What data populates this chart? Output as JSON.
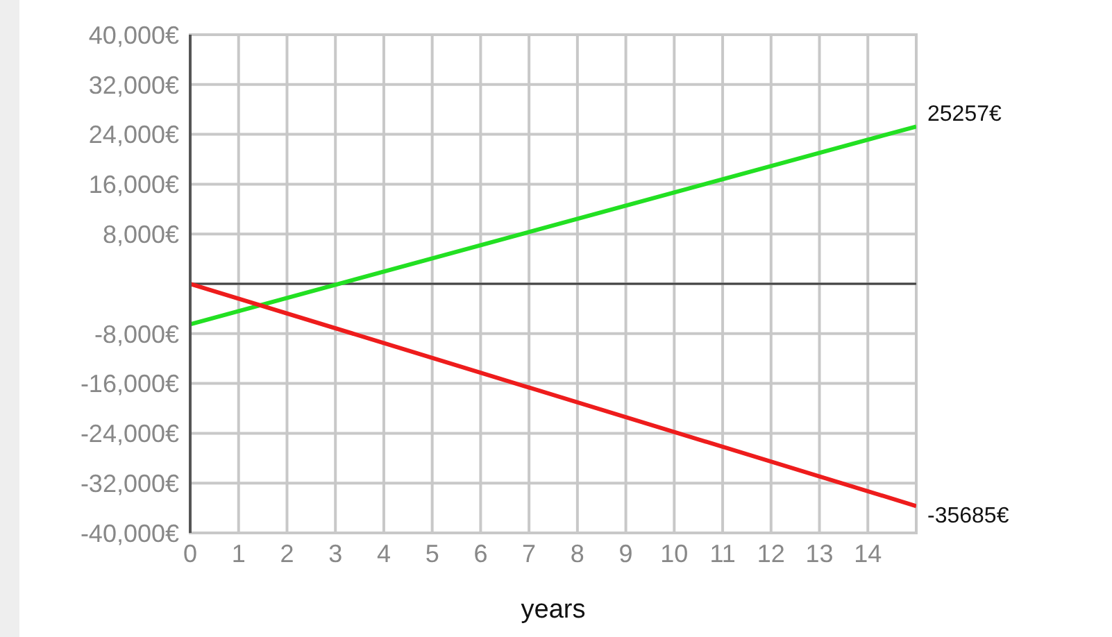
{
  "chart_data": {
    "type": "line",
    "xlabel": "years",
    "x": [
      0,
      15
    ],
    "series": [
      {
        "color": "#22e022",
        "values": [
          -6500,
          25257
        ],
        "value_labels": [
          null,
          "25257€"
        ]
      },
      {
        "color": "#ee1c1c",
        "values": [
          0,
          -35685
        ],
        "value_labels": [
          null,
          "-35685€"
        ]
      }
    ],
    "xlim": [
      0,
      15
    ],
    "xticks": [
      0,
      1,
      2,
      3,
      4,
      5,
      6,
      7,
      8,
      9,
      10,
      11,
      12,
      13,
      14
    ],
    "ylim": [
      -40000,
      40000
    ],
    "yticks": [
      {
        "value": -40000,
        "label": "-40,000€"
      },
      {
        "value": -32000,
        "label": "-32,000€"
      },
      {
        "value": -24000,
        "label": "-24,000€"
      },
      {
        "value": -16000,
        "label": "-16,000€"
      },
      {
        "value": -8000,
        "label": "-8,000€"
      },
      {
        "value": 0,
        "label": null
      },
      {
        "value": 8000,
        "label": "8,000€"
      },
      {
        "value": 16000,
        "label": "16,000€"
      },
      {
        "value": 24000,
        "label": "24,000€"
      },
      {
        "value": 32000,
        "label": "32,000€"
      },
      {
        "value": 40000,
        "label": "40,000€"
      }
    ],
    "ref_lines": [
      {
        "axis": "y",
        "value": 0,
        "color": "#444444"
      }
    ],
    "grid": true,
    "marker": "none",
    "line_style": "solid"
  }
}
